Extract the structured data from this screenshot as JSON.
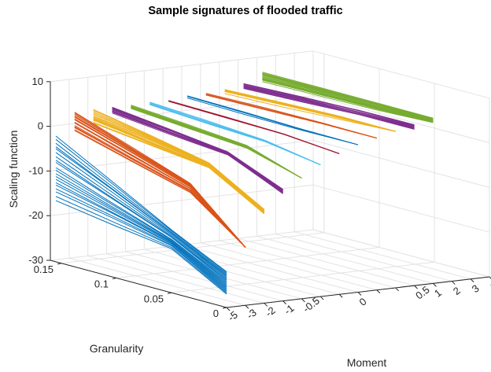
{
  "chart_data": {
    "type": "line",
    "title": "Sample signatures of flooded traffic",
    "xlabel": "Moment",
    "ylabel": "Granularity",
    "zlabel": "Scaling function",
    "x_ticks": [
      "-5",
      "-3",
      "-2",
      "-1",
      "-0.5",
      "-0.2",
      "-0.1",
      "0",
      "0.1",
      "0.2",
      "0.5",
      "1",
      "2",
      "3",
      "5"
    ],
    "y_ticks": [
      "0",
      "0.05",
      "0.1",
      "0.15"
    ],
    "z_ticks": [
      "-30",
      "-20",
      "-10",
      "0",
      "10"
    ],
    "zlim": [
      -30,
      10
    ],
    "grid": true,
    "x_shown_tick_labels": [
      "-5",
      "-3",
      "-2",
      "-1",
      "-0.5",
      "0",
      "0.5",
      "1",
      "2",
      "3",
      "5"
    ],
    "series": [
      {
        "moment": "-5",
        "color": "#0072BD",
        "curves": 20,
        "z_start": [
          -16,
          -2
        ],
        "z_knee": [
          -20,
          -16
        ],
        "z_end": [
          -27,
          -22
        ]
      },
      {
        "moment": "-3",
        "color": "#D95319",
        "curves": 20,
        "z_start": [
          -1,
          3
        ],
        "z_knee": [
          -8,
          -6
        ],
        "z_end": [
          -17,
          -17
        ]
      },
      {
        "moment": "-2",
        "color": "#EDB120",
        "curves": 20,
        "z_start": [
          0,
          3
        ],
        "z_knee": [
          -3,
          -2
        ],
        "z_end": [
          -10,
          -9
        ]
      },
      {
        "moment": "-1",
        "color": "#7E2F8E",
        "curves": 12,
        "z_start": [
          2,
          3
        ],
        "z_knee": [
          -0.5,
          0
        ],
        "z_end": [
          -6,
          -5
        ]
      },
      {
        "moment": "-0.5",
        "color": "#77AC30",
        "curves": 10,
        "z_start": [
          2.5,
          3
        ],
        "z_knee": [
          0.5,
          1
        ],
        "z_end": [
          -3,
          -3
        ]
      },
      {
        "moment": "-0.2",
        "color": "#4DBEEE",
        "curves": 6,
        "z_start": [
          3,
          3
        ],
        "z_knee": [
          1.5,
          1.5
        ],
        "z_end": [
          -0.5,
          -0.5
        ]
      },
      {
        "moment": "-0.1",
        "color": "#A2142F",
        "curves": 4,
        "z_start": [
          3,
          3
        ],
        "z_knee": [
          2.5,
          2.5
        ],
        "z_end": [
          1.5,
          1.5
        ]
      },
      {
        "moment": "0",
        "color": "#0072BD",
        "curves": 4,
        "z_start": [
          3.5,
          3.5
        ],
        "z_knee": [
          3,
          3
        ],
        "z_end": [
          3,
          3
        ]
      },
      {
        "moment": "0.1",
        "color": "#D95319",
        "curves": 6,
        "z_start": [
          3.5,
          3.5
        ],
        "z_knee": [
          4,
          4
        ],
        "z_end": [
          4,
          4
        ]
      },
      {
        "moment": "0.2",
        "color": "#EDB120",
        "curves": 10,
        "z_start": [
          3.5,
          4
        ],
        "z_knee": [
          4.5,
          5
        ],
        "z_end": [
          5,
          5
        ]
      },
      {
        "moment": "0.5",
        "color": "#7E2F8E",
        "curves": 12,
        "z_start": [
          4,
          5
        ],
        "z_knee": [
          5,
          6
        ],
        "z_end": [
          5,
          6
        ]
      },
      {
        "moment": "1",
        "color": "#77AC30",
        "curves": 20,
        "z_start": [
          5,
          7
        ],
        "z_knee": [
          5.5,
          7
        ],
        "z_end": [
          6,
          7
        ]
      }
    ]
  }
}
